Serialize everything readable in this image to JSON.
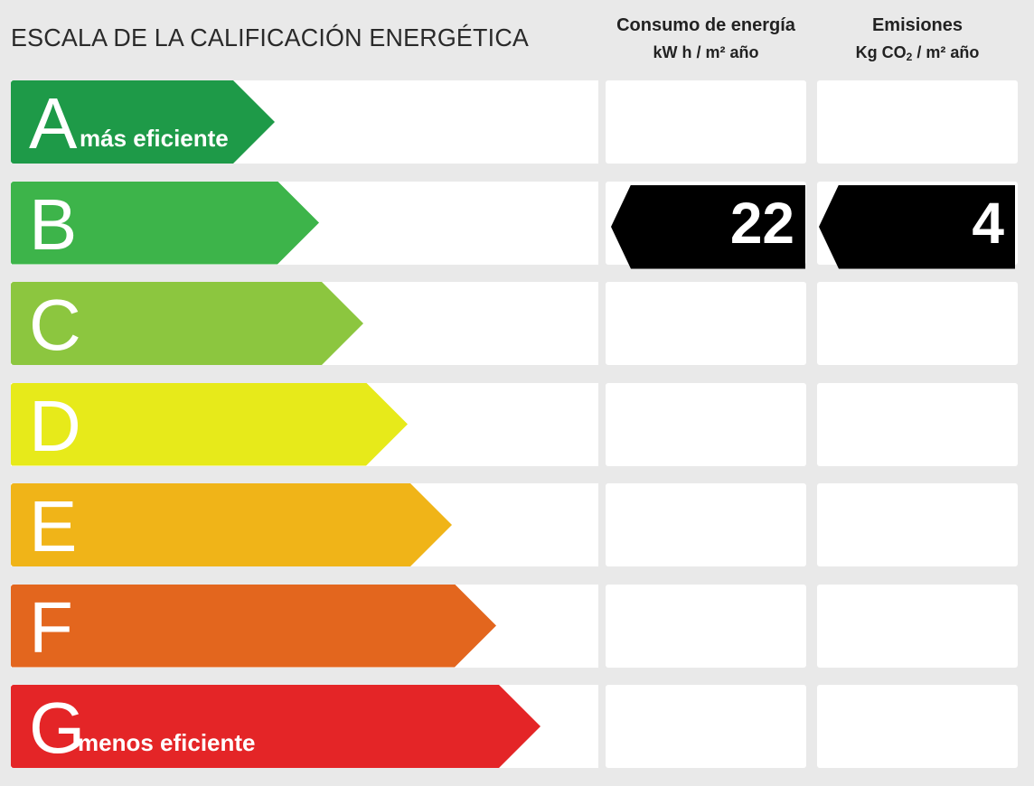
{
  "title": "ESCALA DE LA CALIFICACIÓN ENERGÉTICA",
  "columns": {
    "consumo": {
      "heading": "Consumo de energía",
      "unit": "kW h / m² año"
    },
    "emisiones": {
      "heading": "Emisiones",
      "unit_prefix": "Kg CO",
      "unit_sub": "2",
      "unit_suffix": " / m² año"
    }
  },
  "classes": [
    {
      "letter": "A",
      "tag": "más eficiente",
      "color": "#1e9a48"
    },
    {
      "letter": "B",
      "tag": "",
      "color": "#3db44a"
    },
    {
      "letter": "C",
      "tag": "",
      "color": "#8cc63f"
    },
    {
      "letter": "D",
      "tag": "",
      "color": "#e7ea1a"
    },
    {
      "letter": "E",
      "tag": "",
      "color": "#f0b418"
    },
    {
      "letter": "F",
      "tag": "",
      "color": "#e3661e"
    },
    {
      "letter": "G",
      "tag": "menos eficiente",
      "color": "#e42527"
    }
  ],
  "rating": {
    "consumo": {
      "class": "B",
      "value": "22"
    },
    "emisiones": {
      "class": "B",
      "value": "4"
    }
  }
}
